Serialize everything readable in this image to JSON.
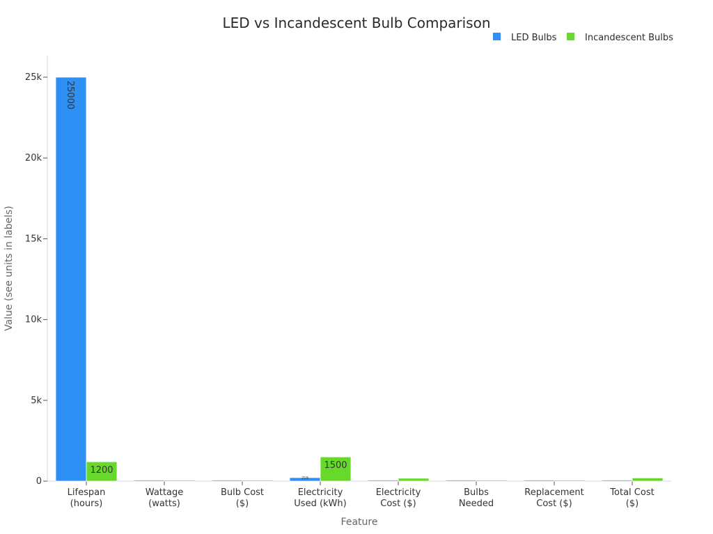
{
  "chart_data": {
    "type": "bar",
    "title": "LED vs Incandescent Bulb Comparison",
    "xlabel": "Feature",
    "ylabel": "Value (see units in labels)",
    "categories": [
      [
        "Lifespan",
        "(hours)"
      ],
      [
        "Wattage",
        "(watts)"
      ],
      [
        "Bulb Cost",
        "($)"
      ],
      [
        "Electricity",
        "Used (kWh)"
      ],
      [
        "Electricity",
        "Cost ($)"
      ],
      [
        "Bulbs",
        "Needed"
      ],
      [
        "Replacement",
        "Cost ($)"
      ],
      [
        "Total Cost",
        "($)"
      ]
    ],
    "series": [
      {
        "name": "LED Bulbs",
        "color": "#2e8ff5",
        "values": [
          25000,
          10,
          5,
          219,
          26,
          1,
          5,
          31
        ],
        "labels": [
          "25000",
          "",
          "",
          "219",
          "",
          "",
          "",
          ""
        ]
      },
      {
        "name": "Incandescent Bulbs",
        "color": "#66d92a",
        "values": [
          1200,
          60,
          1,
          1500,
          180,
          21,
          21,
          201
        ],
        "labels": [
          "1200",
          "",
          "",
          "1500",
          "",
          "",
          "",
          ""
        ]
      }
    ],
    "ylim": [
      0,
      26000
    ],
    "yticks": [
      0,
      5000,
      10000,
      15000,
      20000,
      25000
    ],
    "ytick_labels": [
      "0",
      "5k",
      "10k",
      "15k",
      "20k",
      "25k"
    ],
    "grid": false,
    "legend_position": "top-right"
  }
}
